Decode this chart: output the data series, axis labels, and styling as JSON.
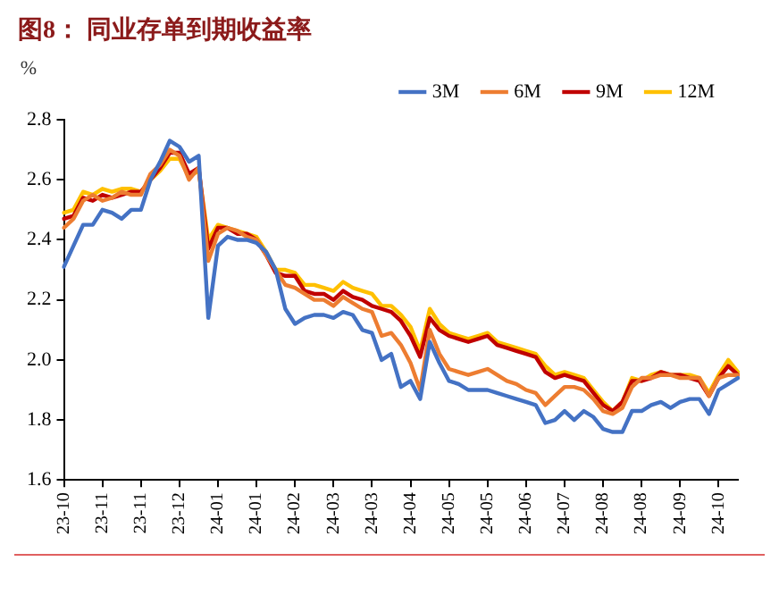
{
  "chart_data": {
    "type": "line",
    "title": "图8：  同业存单到期收益率",
    "ylabel": "%",
    "categories": [
      "23-10",
      null,
      null,
      null,
      "23-11",
      null,
      null,
      null,
      "23-11",
      null,
      null,
      null,
      "23-12",
      null,
      null,
      null,
      "24-01",
      null,
      null,
      null,
      "24-01",
      null,
      null,
      null,
      "24-02",
      null,
      null,
      null,
      "24-03",
      null,
      null,
      null,
      "24-03",
      null,
      null,
      null,
      "24-04",
      null,
      null,
      null,
      "24-05",
      null,
      null,
      null,
      "24-05",
      null,
      null,
      null,
      "24-06",
      null,
      null,
      null,
      "24-07",
      null,
      null,
      null,
      "24-08",
      null,
      null,
      null,
      "24-08",
      null,
      null,
      null,
      "24-09",
      null,
      null,
      null,
      "24-10",
      null,
      null
    ],
    "series": [
      {
        "name": "3M",
        "color": "#4472c4",
        "values": [
          2.31,
          2.38,
          2.45,
          2.45,
          2.5,
          2.49,
          2.47,
          2.5,
          2.5,
          2.6,
          2.66,
          2.73,
          2.71,
          2.66,
          2.68,
          2.14,
          2.38,
          2.41,
          2.4,
          2.4,
          2.39,
          2.36,
          2.3,
          2.17,
          2.12,
          2.14,
          2.15,
          2.15,
          2.14,
          2.16,
          2.15,
          2.1,
          2.09,
          2.0,
          2.02,
          1.91,
          1.93,
          1.87,
          2.06,
          1.99,
          1.93,
          1.92,
          1.9,
          1.9,
          1.9,
          1.89,
          1.88,
          1.87,
          1.86,
          1.85,
          1.79,
          1.8,
          1.83,
          1.8,
          1.83,
          1.81,
          1.77,
          1.76,
          1.76,
          1.83,
          1.83,
          1.85,
          1.86,
          1.84,
          1.86,
          1.87,
          1.87,
          1.82,
          1.9,
          1.92,
          1.94
        ]
      },
      {
        "name": "6M",
        "color": "#ed7d31",
        "values": [
          2.44,
          2.47,
          2.53,
          2.55,
          2.53,
          2.54,
          2.56,
          2.55,
          2.55,
          2.62,
          2.65,
          2.7,
          2.68,
          2.6,
          2.64,
          2.33,
          2.42,
          2.44,
          2.43,
          2.41,
          2.4,
          2.35,
          2.3,
          2.25,
          2.24,
          2.22,
          2.2,
          2.2,
          2.18,
          2.21,
          2.19,
          2.17,
          2.16,
          2.08,
          2.09,
          2.05,
          1.99,
          1.9,
          2.1,
          2.02,
          1.97,
          1.96,
          1.95,
          1.96,
          1.97,
          1.95,
          1.93,
          1.92,
          1.9,
          1.89,
          1.85,
          1.88,
          1.91,
          1.91,
          1.9,
          1.87,
          1.83,
          1.82,
          1.84,
          1.91,
          1.94,
          1.94,
          1.95,
          1.95,
          1.94,
          1.94,
          1.94,
          1.88,
          1.94,
          1.95,
          1.95
        ]
      },
      {
        "name": "9M",
        "color": "#c00000",
        "values": [
          2.47,
          2.48,
          2.54,
          2.53,
          2.55,
          2.54,
          2.55,
          2.56,
          2.56,
          2.6,
          2.64,
          2.69,
          2.69,
          2.62,
          2.64,
          2.37,
          2.44,
          2.44,
          2.42,
          2.42,
          2.4,
          2.35,
          2.29,
          2.28,
          2.28,
          2.23,
          2.22,
          2.22,
          2.2,
          2.23,
          2.21,
          2.2,
          2.18,
          2.17,
          2.16,
          2.13,
          2.08,
          2.01,
          2.14,
          2.1,
          2.08,
          2.07,
          2.06,
          2.07,
          2.08,
          2.05,
          2.04,
          2.03,
          2.02,
          2.01,
          1.96,
          1.94,
          1.95,
          1.94,
          1.93,
          1.89,
          1.85,
          1.83,
          1.86,
          1.93,
          1.93,
          1.94,
          1.96,
          1.95,
          1.95,
          1.94,
          1.93,
          1.88,
          1.94,
          1.98,
          1.95
        ]
      },
      {
        "name": "12M",
        "color": "#ffc000",
        "values": [
          2.49,
          2.5,
          2.56,
          2.55,
          2.57,
          2.56,
          2.57,
          2.57,
          2.56,
          2.6,
          2.63,
          2.67,
          2.67,
          2.61,
          2.63,
          2.4,
          2.45,
          2.44,
          2.43,
          2.42,
          2.41,
          2.36,
          2.3,
          2.3,
          2.29,
          2.25,
          2.25,
          2.24,
          2.23,
          2.26,
          2.24,
          2.23,
          2.22,
          2.18,
          2.18,
          2.15,
          2.11,
          2.03,
          2.17,
          2.12,
          2.09,
          2.08,
          2.07,
          2.08,
          2.09,
          2.06,
          2.05,
          2.04,
          2.03,
          2.02,
          1.98,
          1.95,
          1.96,
          1.95,
          1.94,
          1.9,
          1.86,
          1.83,
          1.86,
          1.94,
          1.93,
          1.95,
          1.96,
          1.95,
          1.95,
          1.95,
          1.94,
          1.89,
          1.95,
          2.0,
          1.96
        ]
      }
    ],
    "ylim": [
      1.6,
      2.8
    ],
    "yticks": [
      1.6,
      1.8,
      {
        "value": 2,
        "label": "2.0"
      },
      2.2,
      2.4,
      2.6,
      2.8
    ],
    "grid": false,
    "legend": "top",
    "marker": "none",
    "line_style": "solid"
  }
}
